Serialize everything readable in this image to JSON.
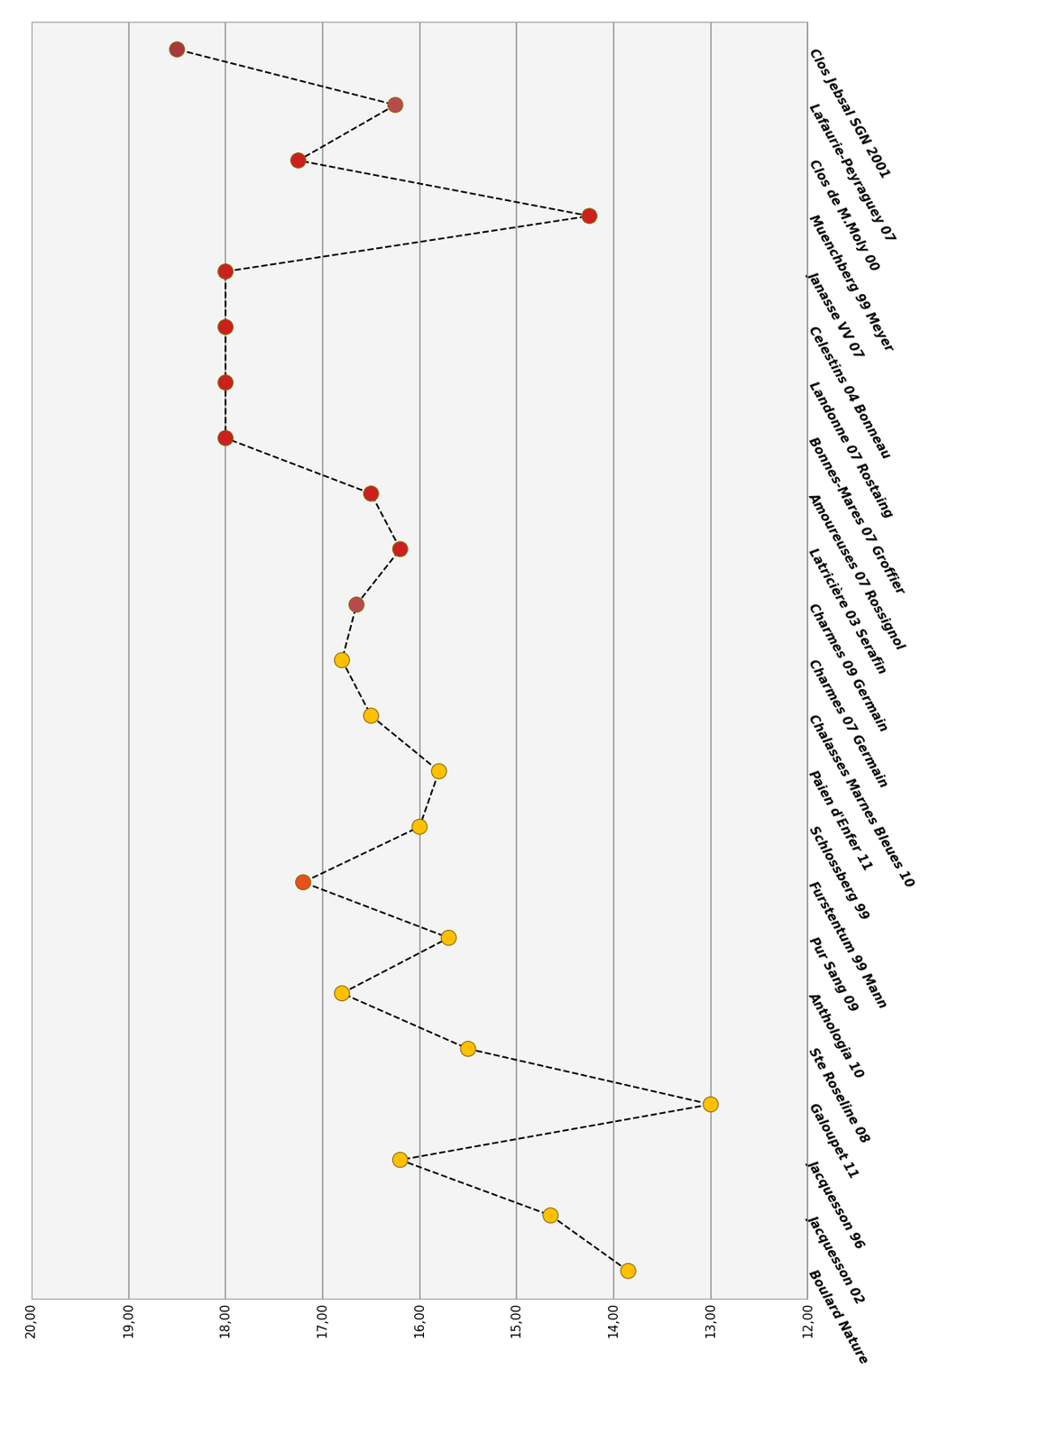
{
  "chart_data": {
    "type": "line",
    "orientation": "horizontal",
    "categories": [
      "Boulard Nature",
      "Jacquesson 02",
      "Jacquesson 96",
      "Galoupet 11",
      "Ste Roseline 08",
      "Anthologia 10",
      "Pur Sang 09",
      "Furstentum 99 Mann",
      "Schlossberg 99",
      "Paien d'Enfer 11",
      "Chalasses Marnes Bleues 10",
      "Charmes 07 Germain",
      "Charmes 09 Germain",
      "Latricière 03 Serafin",
      "Amoureuses 07 Rossignol",
      "Bonnes-Mares 07 Groffier",
      "Landonne 07 Rostaing",
      "Celestins 04 Bonneau",
      "Janasse VV 07",
      "Muenchberg 99 Meyer",
      "Clos de M.Moly 00",
      "Lafaurie-Peyraguey 07",
      "Clos Jebsal SGN 2001"
    ],
    "values": [
      13.85,
      14.65,
      16.2,
      13.0,
      15.5,
      16.8,
      15.7,
      17.2,
      16.0,
      15.8,
      16.5,
      16.8,
      16.65,
      16.2,
      16.5,
      18.0,
      18.0,
      18.0,
      18.0,
      14.25,
      17.25,
      16.25,
      18.5
    ],
    "colors": [
      "#FFC000",
      "#FFC000",
      "#FFC000",
      "#FFC000",
      "#FFC000",
      "#FFC000",
      "#FFC000",
      "#E8501A",
      "#FFC000",
      "#FFC000",
      "#FFC000",
      "#FFC000",
      "#B84A4E",
      "#CC1F1F",
      "#CC1F1F",
      "#CC1F1F",
      "#CC1F1F",
      "#CC1F1F",
      "#CC1F1F",
      "#CC1F1F",
      "#CC1F1F",
      "#B84A4E",
      "#A8383C"
    ],
    "color": "#000000",
    "marker": "o",
    "line_style": "dashed",
    "xlim": [
      20,
      12
    ],
    "xticks": [
      {
        "value": 20,
        "label": "20,00"
      },
      {
        "value": 19,
        "label": "19,00"
      },
      {
        "value": 18,
        "label": "18,00"
      },
      {
        "value": 17,
        "label": "17,00"
      },
      {
        "value": 16,
        "label": "16,00"
      },
      {
        "value": 15,
        "label": "15,00"
      },
      {
        "value": 14,
        "label": "14,00"
      },
      {
        "value": 13,
        "label": "13,00"
      },
      {
        "value": 12,
        "label": "12,00"
      }
    ],
    "grid": true
  }
}
